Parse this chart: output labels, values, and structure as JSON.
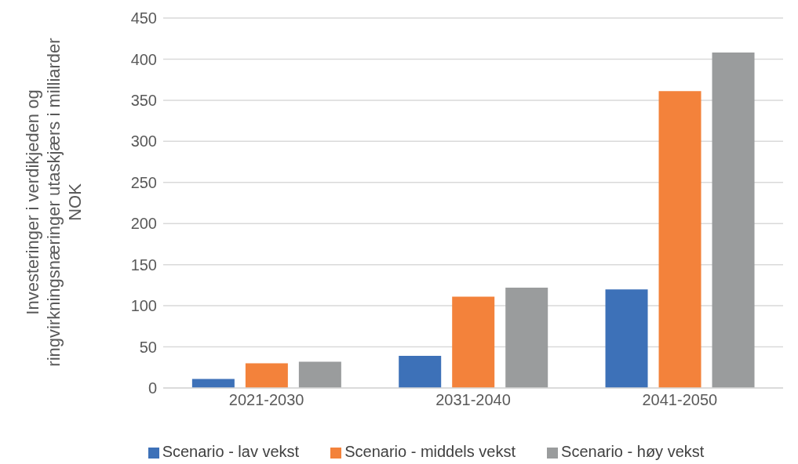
{
  "chart_data": {
    "type": "bar",
    "ylabel": "Investeringer i verdikjeden og ringvirkningsnæringer utaskjærs i milliarder NOK",
    "categories": [
      "2021-2030",
      "2031-2040",
      "2041-2050"
    ],
    "series": [
      {
        "name": "Scenario - lav vekst",
        "color": "#3d71b8",
        "values": [
          11,
          39,
          120
        ]
      },
      {
        "name": "Scenario - middels vekst",
        "color": "#f3823b",
        "values": [
          30,
          111,
          361
        ]
      },
      {
        "name": "Scenario - høy vekst",
        "color": "#9a9c9d",
        "values": [
          32,
          122,
          408
        ]
      }
    ],
    "ylim": [
      0,
      450
    ],
    "yticks": [
      0,
      50,
      100,
      150,
      200,
      250,
      300,
      350,
      400,
      450
    ],
    "grid": "y",
    "legend": "bottom"
  }
}
